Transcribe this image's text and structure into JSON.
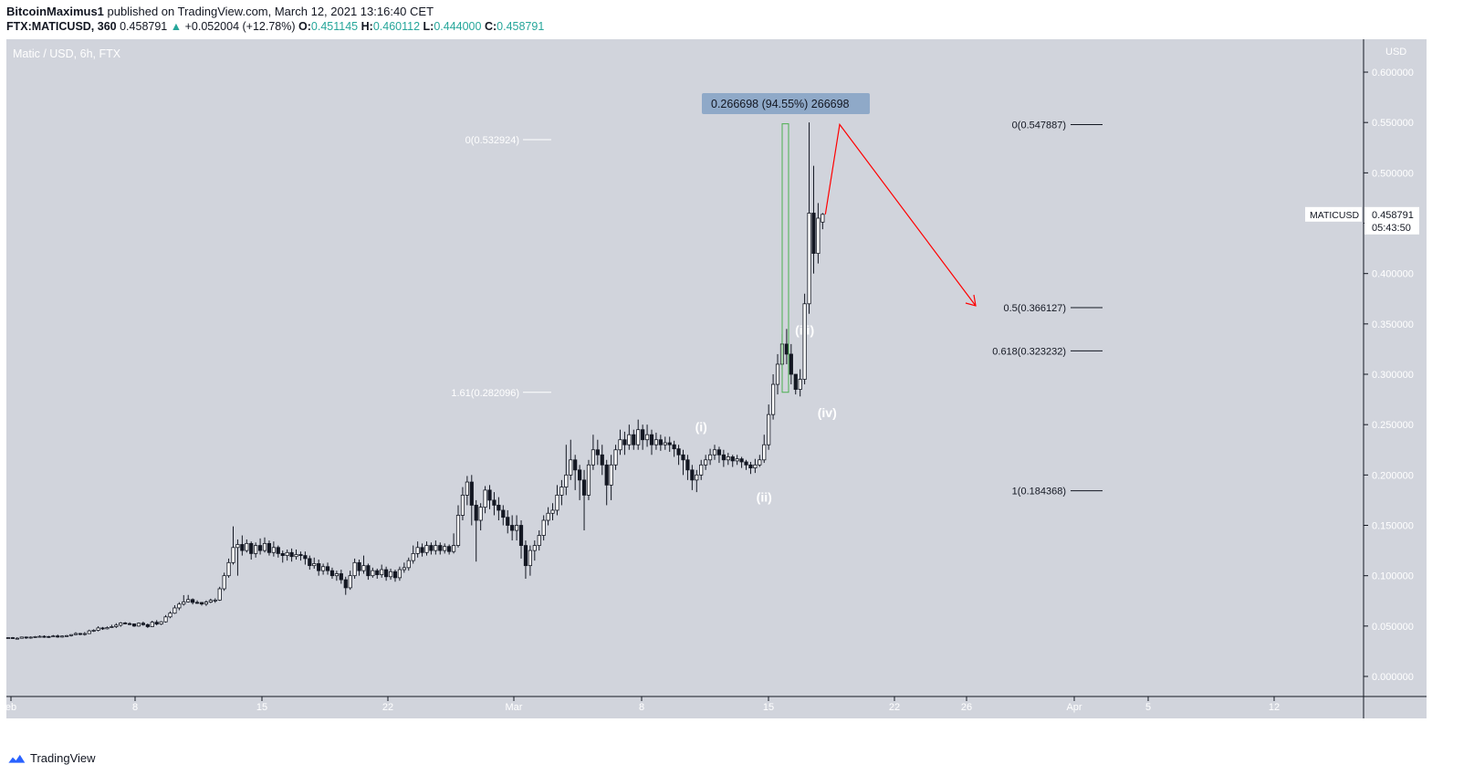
{
  "header": {
    "author": "BitcoinMaximus1",
    "published_text": " published on TradingView.com, March 12, 2021 13:16:40 CET",
    "symbol_interval": "FTX:MATICUSD, 360",
    "last_price": "0.458791",
    "change": "+0.052004 (+12.78%)",
    "o_label": "O:",
    "o_value": "0.451145",
    "h_label": "H:",
    "h_value": "0.460112",
    "l_label": "L:",
    "l_value": "0.444000",
    "c_label": "C:",
    "c_value": "0.458791"
  },
  "footer": {
    "brand": "TradingView"
  },
  "colors": {
    "pane_bg": "#d1d4dc",
    "up": "#ffffff",
    "down": "#131722",
    "target_line": "#ff0000",
    "range_bar": "#4caf50",
    "measure_box": "#8fa9c8"
  },
  "chart_data": {
    "type": "candlestick",
    "title": "Matic / USD, 6h, FTX",
    "currency": "USD",
    "y_ticks": [
      "0.600000",
      "0.550000",
      "0.500000",
      "0.450000",
      "0.400000",
      "0.350000",
      "0.300000",
      "0.250000",
      "0.200000",
      "0.150000",
      "0.100000",
      "0.050000",
      "0.000000"
    ],
    "ylim": [
      0.0,
      0.6
    ],
    "x_ticks": [
      "eb",
      "8",
      "15",
      "22",
      "Mar",
      "8",
      "15",
      "22",
      "26",
      "Apr",
      "5",
      "12"
    ],
    "candles": [
      [
        0.0382,
        0.0385,
        0.0373,
        0.039
      ],
      [
        0.0385,
        0.0379,
        0.0372,
        0.0391
      ],
      [
        0.0379,
        0.0379,
        0.037,
        0.0389
      ],
      [
        0.0379,
        0.0391,
        0.0376,
        0.0395
      ],
      [
        0.0391,
        0.0382,
        0.0373,
        0.0396
      ],
      [
        0.0382,
        0.039,
        0.0375,
        0.0397
      ],
      [
        0.039,
        0.0395,
        0.0383,
        0.0401
      ],
      [
        0.0395,
        0.0398,
        0.0386,
        0.0408
      ],
      [
        0.0398,
        0.0396,
        0.0383,
        0.0408
      ],
      [
        0.0396,
        0.0394,
        0.0383,
        0.0402
      ],
      [
        0.0394,
        0.0402,
        0.039,
        0.0411
      ],
      [
        0.0402,
        0.0391,
        0.0384,
        0.0415
      ],
      [
        0.0391,
        0.0401,
        0.0385,
        0.0407
      ],
      [
        0.0401,
        0.0405,
        0.0392,
        0.0411
      ],
      [
        0.0405,
        0.0415,
        0.0396,
        0.0418
      ],
      [
        0.0415,
        0.0426,
        0.0409,
        0.0439
      ],
      [
        0.0426,
        0.0422,
        0.0409,
        0.0432
      ],
      [
        0.0422,
        0.0425,
        0.0406,
        0.044
      ],
      [
        0.0425,
        0.0452,
        0.0421,
        0.0464
      ],
      [
        0.0452,
        0.0458,
        0.0442,
        0.0468
      ],
      [
        0.0458,
        0.0481,
        0.0447,
        0.0498
      ],
      [
        0.0481,
        0.0473,
        0.0462,
        0.0491
      ],
      [
        0.0473,
        0.0485,
        0.0467,
        0.0496
      ],
      [
        0.0485,
        0.0494,
        0.0481,
        0.0513
      ],
      [
        0.0494,
        0.0509,
        0.048,
        0.0528
      ],
      [
        0.0509,
        0.0531,
        0.0493,
        0.054
      ],
      [
        0.0531,
        0.0524,
        0.0517,
        0.054
      ],
      [
        0.0524,
        0.0521,
        0.051,
        0.0537
      ],
      [
        0.0521,
        0.05,
        0.0492,
        0.0526
      ],
      [
        0.05,
        0.0528,
        0.0494,
        0.0536
      ],
      [
        0.0528,
        0.0514,
        0.0503,
        0.0544
      ],
      [
        0.0514,
        0.0494,
        0.0481,
        0.0525
      ],
      [
        0.0494,
        0.0538,
        0.0491,
        0.0553
      ],
      [
        0.0538,
        0.052,
        0.0507,
        0.0559
      ],
      [
        0.052,
        0.0542,
        0.051,
        0.0549
      ],
      [
        0.0542,
        0.0591,
        0.0534,
        0.0609
      ],
      [
        0.0591,
        0.0628,
        0.0578,
        0.0646
      ],
      [
        0.0628,
        0.068,
        0.0621,
        0.0707
      ],
      [
        0.068,
        0.0718,
        0.0657,
        0.0737
      ],
      [
        0.0718,
        0.074,
        0.0703,
        0.0807
      ],
      [
        0.074,
        0.0763,
        0.0733,
        0.0809
      ],
      [
        0.0763,
        0.0735,
        0.0715,
        0.0775
      ],
      [
        0.0735,
        0.0734,
        0.072,
        0.0755
      ],
      [
        0.0734,
        0.0719,
        0.0703,
        0.0739
      ],
      [
        0.0719,
        0.0738,
        0.07,
        0.0755
      ],
      [
        0.0738,
        0.0755,
        0.0727,
        0.0772
      ],
      [
        0.0755,
        0.0758,
        0.0731,
        0.0775
      ],
      [
        0.0758,
        0.087,
        0.075,
        0.089
      ],
      [
        0.087,
        0.1,
        0.085,
        0.103
      ],
      [
        0.1,
        0.113,
        0.098,
        0.117
      ],
      [
        0.113,
        0.128,
        0.111,
        0.149
      ],
      [
        0.128,
        0.131,
        0.1,
        0.136
      ],
      [
        0.131,
        0.125,
        0.12,
        0.14
      ],
      [
        0.125,
        0.132,
        0.123,
        0.136
      ],
      [
        0.132,
        0.122,
        0.116,
        0.134
      ],
      [
        0.122,
        0.13,
        0.118,
        0.133
      ],
      [
        0.13,
        0.125,
        0.121,
        0.137
      ],
      [
        0.125,
        0.132,
        0.123,
        0.138
      ],
      [
        0.132,
        0.123,
        0.12,
        0.135
      ],
      [
        0.123,
        0.128,
        0.119,
        0.134
      ],
      [
        0.128,
        0.122,
        0.118,
        0.13
      ],
      [
        0.122,
        0.12,
        0.113,
        0.125
      ],
      [
        0.12,
        0.123,
        0.115,
        0.126
      ],
      [
        0.123,
        0.119,
        0.114,
        0.127
      ],
      [
        0.119,
        0.121,
        0.116,
        0.126
      ],
      [
        0.121,
        0.12,
        0.115,
        0.124
      ],
      [
        0.12,
        0.117,
        0.111,
        0.124
      ],
      [
        0.117,
        0.11,
        0.106,
        0.12
      ],
      [
        0.11,
        0.112,
        0.107,
        0.118
      ],
      [
        0.112,
        0.105,
        0.1,
        0.116
      ],
      [
        0.105,
        0.109,
        0.101,
        0.112
      ],
      [
        0.109,
        0.105,
        0.101,
        0.113
      ],
      [
        0.105,
        0.1,
        0.097,
        0.108
      ],
      [
        0.1,
        0.102,
        0.095,
        0.105
      ],
      [
        0.102,
        0.096,
        0.092,
        0.106
      ],
      [
        0.096,
        0.088,
        0.081,
        0.099
      ],
      [
        0.088,
        0.1,
        0.086,
        0.105
      ],
      [
        0.1,
        0.113,
        0.097,
        0.117
      ],
      [
        0.113,
        0.105,
        0.1,
        0.116
      ],
      [
        0.105,
        0.11,
        0.102,
        0.12
      ],
      [
        0.11,
        0.1,
        0.096,
        0.112
      ],
      [
        0.1,
        0.105,
        0.098,
        0.108
      ],
      [
        0.105,
        0.101,
        0.097,
        0.107
      ],
      [
        0.101,
        0.106,
        0.098,
        0.111
      ],
      [
        0.106,
        0.099,
        0.095,
        0.109
      ],
      [
        0.099,
        0.104,
        0.096,
        0.107
      ],
      [
        0.104,
        0.098,
        0.094,
        0.106
      ],
      [
        0.098,
        0.106,
        0.095,
        0.109
      ],
      [
        0.106,
        0.108,
        0.103,
        0.113
      ],
      [
        0.108,
        0.115,
        0.105,
        0.118
      ],
      [
        0.115,
        0.122,
        0.112,
        0.13
      ],
      [
        0.122,
        0.128,
        0.118,
        0.134
      ],
      [
        0.128,
        0.123,
        0.119,
        0.132
      ],
      [
        0.123,
        0.13,
        0.12,
        0.134
      ],
      [
        0.13,
        0.125,
        0.121,
        0.133
      ],
      [
        0.125,
        0.13,
        0.121,
        0.135
      ],
      [
        0.13,
        0.125,
        0.121,
        0.133
      ],
      [
        0.125,
        0.129,
        0.122,
        0.132
      ],
      [
        0.129,
        0.124,
        0.121,
        0.131
      ],
      [
        0.124,
        0.13,
        0.122,
        0.142
      ],
      [
        0.13,
        0.16,
        0.128,
        0.17
      ],
      [
        0.16,
        0.18,
        0.155,
        0.188
      ],
      [
        0.18,
        0.193,
        0.17,
        0.199
      ],
      [
        0.193,
        0.17,
        0.15,
        0.2
      ],
      [
        0.17,
        0.155,
        0.114,
        0.175
      ],
      [
        0.155,
        0.168,
        0.145,
        0.172
      ],
      [
        0.168,
        0.185,
        0.162,
        0.189
      ],
      [
        0.185,
        0.175,
        0.166,
        0.19
      ],
      [
        0.175,
        0.17,
        0.16,
        0.183
      ],
      [
        0.17,
        0.165,
        0.155,
        0.178
      ],
      [
        0.165,
        0.158,
        0.15,
        0.17
      ],
      [
        0.158,
        0.15,
        0.142,
        0.165
      ],
      [
        0.15,
        0.145,
        0.135,
        0.16
      ],
      [
        0.145,
        0.15,
        0.135,
        0.16
      ],
      [
        0.15,
        0.13,
        0.117,
        0.155
      ],
      [
        0.13,
        0.11,
        0.097,
        0.135
      ],
      [
        0.11,
        0.125,
        0.1,
        0.13
      ],
      [
        0.125,
        0.13,
        0.115,
        0.135
      ],
      [
        0.13,
        0.14,
        0.125,
        0.145
      ],
      [
        0.14,
        0.155,
        0.135,
        0.16
      ],
      [
        0.155,
        0.162,
        0.15,
        0.168
      ],
      [
        0.162,
        0.165,
        0.155,
        0.172
      ],
      [
        0.165,
        0.18,
        0.16,
        0.19
      ],
      [
        0.18,
        0.188,
        0.17,
        0.195
      ],
      [
        0.188,
        0.2,
        0.18,
        0.23
      ],
      [
        0.2,
        0.215,
        0.195,
        0.235
      ],
      [
        0.215,
        0.205,
        0.185,
        0.22
      ],
      [
        0.205,
        0.195,
        0.175,
        0.21
      ],
      [
        0.195,
        0.18,
        0.145,
        0.205
      ],
      [
        0.18,
        0.21,
        0.175,
        0.215
      ],
      [
        0.21,
        0.225,
        0.205,
        0.24
      ],
      [
        0.225,
        0.22,
        0.21,
        0.235
      ],
      [
        0.22,
        0.21,
        0.2,
        0.23
      ],
      [
        0.21,
        0.19,
        0.17,
        0.215
      ],
      [
        0.19,
        0.21,
        0.175,
        0.22
      ],
      [
        0.21,
        0.225,
        0.205,
        0.23
      ],
      [
        0.225,
        0.235,
        0.22,
        0.245
      ],
      [
        0.235,
        0.23,
        0.22,
        0.243
      ],
      [
        0.23,
        0.24,
        0.225,
        0.25
      ],
      [
        0.24,
        0.23,
        0.225,
        0.245
      ],
      [
        0.23,
        0.245,
        0.225,
        0.255
      ],
      [
        0.245,
        0.235,
        0.225,
        0.25
      ],
      [
        0.235,
        0.24,
        0.228,
        0.25
      ],
      [
        0.24,
        0.23,
        0.22,
        0.245
      ],
      [
        0.23,
        0.235,
        0.225,
        0.242
      ],
      [
        0.235,
        0.23,
        0.224,
        0.24
      ],
      [
        0.23,
        0.232,
        0.225,
        0.238
      ],
      [
        0.232,
        0.23,
        0.223,
        0.238
      ],
      [
        0.23,
        0.226,
        0.218,
        0.234
      ],
      [
        0.226,
        0.22,
        0.21,
        0.23
      ],
      [
        0.22,
        0.215,
        0.2,
        0.225
      ],
      [
        0.215,
        0.205,
        0.195,
        0.22
      ],
      [
        0.205,
        0.195,
        0.185,
        0.21
      ],
      [
        0.195,
        0.2,
        0.183,
        0.205
      ],
      [
        0.2,
        0.21,
        0.195,
        0.215
      ],
      [
        0.21,
        0.215,
        0.205,
        0.22
      ],
      [
        0.215,
        0.22,
        0.21,
        0.226
      ],
      [
        0.22,
        0.225,
        0.215,
        0.23
      ],
      [
        0.225,
        0.22,
        0.212,
        0.228
      ],
      [
        0.22,
        0.215,
        0.208,
        0.225
      ],
      [
        0.215,
        0.218,
        0.21,
        0.222
      ],
      [
        0.218,
        0.214,
        0.208,
        0.22
      ],
      [
        0.214,
        0.216,
        0.21,
        0.22
      ],
      [
        0.216,
        0.213,
        0.207,
        0.218
      ],
      [
        0.213,
        0.21,
        0.205,
        0.215
      ],
      [
        0.21,
        0.207,
        0.201,
        0.213
      ],
      [
        0.207,
        0.21,
        0.202,
        0.216
      ],
      [
        0.21,
        0.215,
        0.208,
        0.22
      ],
      [
        0.215,
        0.23,
        0.212,
        0.24
      ],
      [
        0.23,
        0.26,
        0.225,
        0.27
      ],
      [
        0.26,
        0.29,
        0.255,
        0.3
      ],
      [
        0.29,
        0.31,
        0.28,
        0.32
      ],
      [
        0.31,
        0.33,
        0.305,
        0.34
      ],
      [
        0.33,
        0.32,
        0.31,
        0.345
      ],
      [
        0.32,
        0.3,
        0.29,
        0.33
      ],
      [
        0.3,
        0.285,
        0.28,
        0.3
      ],
      [
        0.285,
        0.295,
        0.278,
        0.305
      ],
      [
        0.295,
        0.37,
        0.29,
        0.38
      ],
      [
        0.37,
        0.46,
        0.36,
        0.55
      ],
      [
        0.46,
        0.42,
        0.4,
        0.507
      ],
      [
        0.42,
        0.455,
        0.41,
        0.47
      ],
      [
        0.4511,
        0.4588,
        0.444,
        0.4601
      ]
    ],
    "fib_left": [
      {
        "label": "0(0.532924)",
        "price": 0.532924
      },
      {
        "label": "1.61(0.282096)",
        "price": 0.282096
      }
    ],
    "fib_right": [
      {
        "label": "0(0.547887)",
        "price": 0.547887
      },
      {
        "label": "0.5(0.366127)",
        "price": 0.366127
      },
      {
        "label": "0.618(0.323232)",
        "price": 0.323232
      },
      {
        "label": "1(0.184368)",
        "price": 0.184368
      }
    ],
    "wave_labels": [
      {
        "text": "(i)",
        "price": 0.248,
        "bar": 154
      },
      {
        "text": "(ii)",
        "price": 0.178,
        "bar": 168
      },
      {
        "text": "(iii)",
        "price": 0.344,
        "bar": 177
      },
      {
        "text": "(iv)",
        "price": 0.262,
        "bar": 182
      }
    ],
    "measure_label": "0.266698 (94.55%) 266698",
    "last_label": "MATICUSD",
    "last_price": "0.458791",
    "countdown": "05:43:50"
  }
}
